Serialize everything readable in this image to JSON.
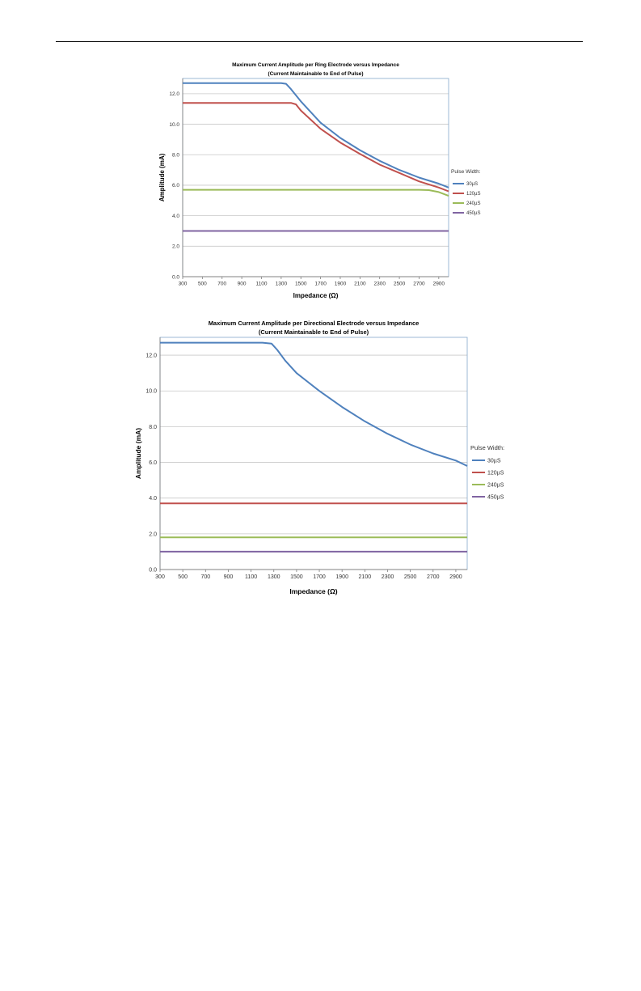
{
  "chart_data": [
    {
      "type": "line",
      "title": "Maximum Current Amplitude per Ring Electrode versus Impedance",
      "subtitle": "(Current Maintainable to End of Pulse)",
      "xlabel": "Impedance (Ω)",
      "ylabel": "Amplitude  (mA)",
      "xlim": [
        300,
        3000
      ],
      "ylim": [
        0,
        13
      ],
      "xticks": [
        300,
        500,
        700,
        900,
        1100,
        1300,
        1500,
        1700,
        1900,
        2100,
        2300,
        2500,
        2700,
        2900
      ],
      "yticks": [
        0,
        2,
        4,
        6,
        8,
        10,
        12
      ],
      "ytick_labels": [
        "0.0",
        "2.0",
        "4.0",
        "6.0",
        "8.0",
        "10.0",
        "12.0"
      ],
      "grid": "horizontal",
      "legend_title": "Pulse Width:",
      "legend_position": "right",
      "series": [
        {
          "name": "30µS",
          "color": "#4f81bd",
          "x": [
            300,
            1300,
            1350,
            1400,
            1500,
            1700,
            1900,
            2100,
            2300,
            2500,
            2700,
            2900,
            3000
          ],
          "y": [
            12.7,
            12.7,
            12.65,
            12.3,
            11.5,
            10.1,
            9.1,
            8.3,
            7.6,
            7.0,
            6.5,
            6.1,
            5.85
          ]
        },
        {
          "name": "120µS",
          "color": "#c0504d",
          "x": [
            300,
            1400,
            1450,
            1500,
            1700,
            1900,
            2100,
            2300,
            2500,
            2700,
            2900,
            3000
          ],
          "y": [
            11.4,
            11.4,
            11.3,
            10.9,
            9.7,
            8.8,
            8.05,
            7.35,
            6.8,
            6.25,
            5.85,
            5.6
          ]
        },
        {
          "name": "240µS",
          "color": "#9bbb59",
          "x": [
            300,
            2700,
            2800,
            2900,
            3000
          ],
          "y": [
            5.7,
            5.7,
            5.68,
            5.55,
            5.3
          ]
        },
        {
          "name": "450µS",
          "color": "#8064a2",
          "x": [
            300,
            3000
          ],
          "y": [
            3.0,
            3.0
          ]
        }
      ]
    },
    {
      "type": "line",
      "title": "Maximum Current Amplitude per Directional Electrode versus Impedance",
      "subtitle": "(Current Maintainable to End of Pulse)",
      "xlabel": "Impedance (Ω)",
      "ylabel": "Amplitude (mA)",
      "xlim": [
        300,
        3000
      ],
      "ylim": [
        0,
        13
      ],
      "xticks": [
        300,
        500,
        700,
        900,
        1100,
        1300,
        1500,
        1700,
        1900,
        2100,
        2300,
        2500,
        2700,
        2900
      ],
      "yticks": [
        0,
        2,
        4,
        6,
        8,
        10,
        12
      ],
      "ytick_labels": [
        "0.0",
        "2.0",
        "4.0",
        "6.0",
        "8.0",
        "10.0",
        "12.0"
      ],
      "grid": "horizontal",
      "legend_title": "Pulse Width:",
      "legend_position": "right",
      "series": [
        {
          "name": "30µS",
          "color": "#4f81bd",
          "x": [
            300,
            1200,
            1280,
            1330,
            1400,
            1500,
            1700,
            1900,
            2100,
            2300,
            2500,
            2700,
            2900,
            3000
          ],
          "y": [
            12.7,
            12.7,
            12.65,
            12.3,
            11.7,
            11.0,
            10.0,
            9.1,
            8.3,
            7.6,
            7.0,
            6.5,
            6.1,
            5.8
          ]
        },
        {
          "name": "120µS",
          "color": "#c0504d",
          "x": [
            300,
            3000
          ],
          "y": [
            3.7,
            3.7
          ]
        },
        {
          "name": "240µS",
          "color": "#9bbb59",
          "x": [
            300,
            3000
          ],
          "y": [
            1.8,
            1.8
          ]
        },
        {
          "name": "450µS",
          "color": "#8064a2",
          "x": [
            300,
            3000
          ],
          "y": [
            1.0,
            1.0
          ]
        }
      ]
    }
  ]
}
